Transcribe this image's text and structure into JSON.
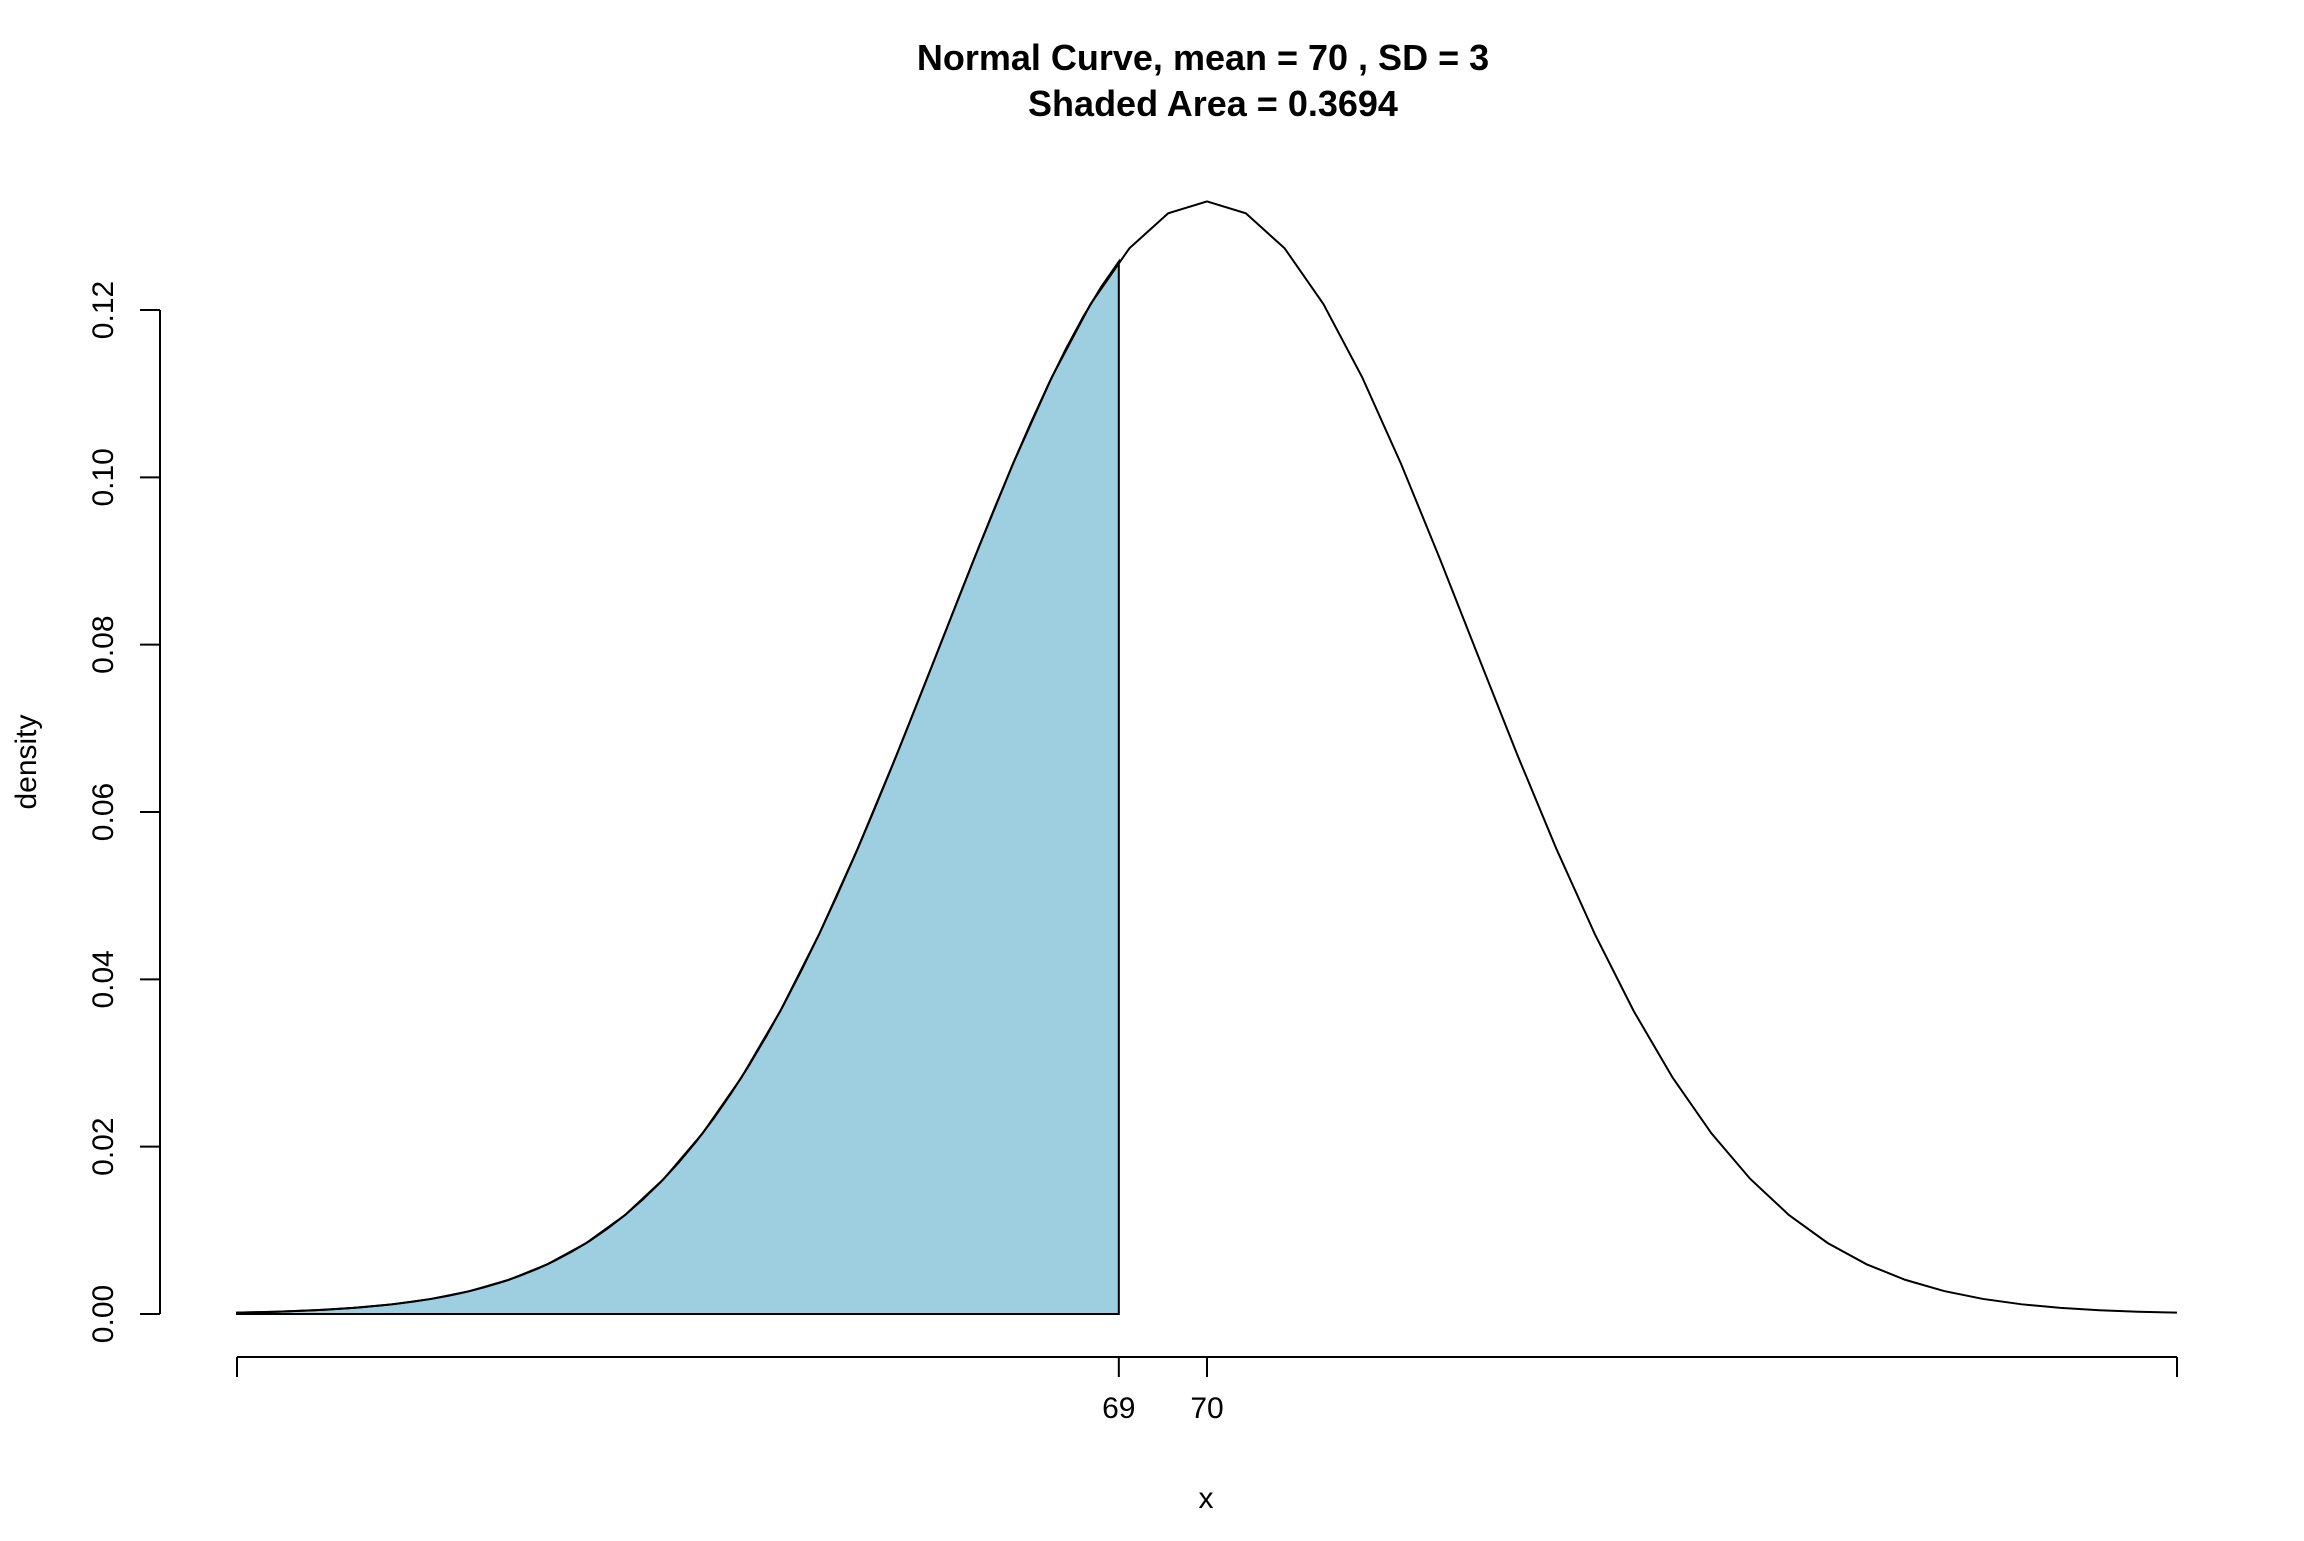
{
  "chart_data": {
    "type": "area",
    "title": "Normal Curve, mean =  70 , SD =  3",
    "subtitle": "Shaded Area =  0.3694",
    "xlabel": "x",
    "ylabel": "density",
    "mean": 70,
    "sd": 3,
    "xlim": [
      59,
      81
    ],
    "ylim": [
      0,
      0.12
    ],
    "shade_from": 59,
    "shade_to": 69,
    "shaded_area": 0.3694,
    "x_ticks": [
      69,
      70
    ],
    "x_tick_labels": [
      "69",
      "70"
    ],
    "y_ticks": [
      0,
      0.02,
      0.04,
      0.06,
      0.08,
      0.1,
      0.12
    ],
    "y_tick_labels": [
      "0.00",
      "0.02",
      "0.04",
      "0.06",
      "0.08",
      "0.10",
      "0.12"
    ],
    "grid": false,
    "colors": {
      "shade": "#9ecfe1",
      "curve": "#000000"
    }
  }
}
